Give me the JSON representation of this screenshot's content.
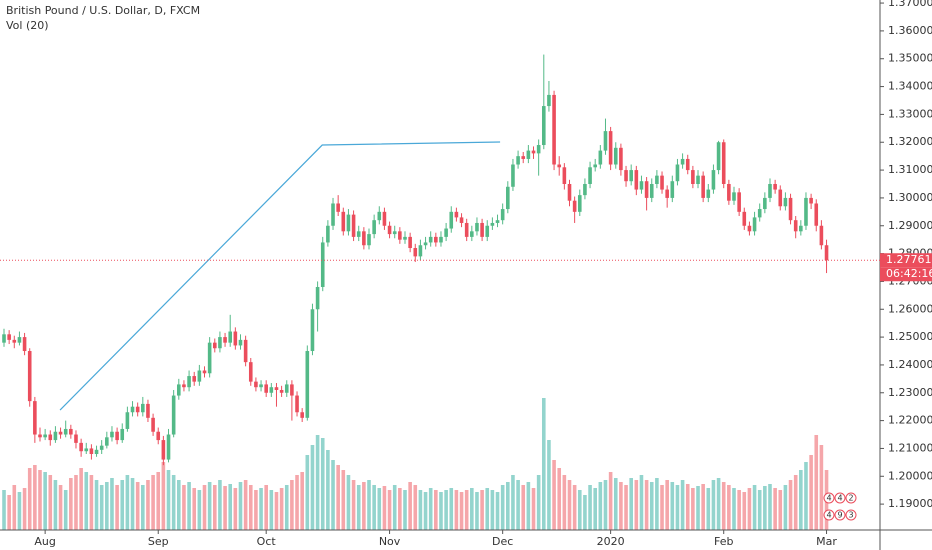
{
  "chart_data": {
    "type": "candlestick",
    "title": "British Pound / U.S. Dollar, D, FXCM",
    "volume_label": "Vol (20)",
    "up_color": "#53b987",
    "down_color": "#eb4d5c",
    "volume_up_color": "#93d4cd",
    "volume_down_color": "#f5a6aa",
    "drawing_color": "#4aa8d8",
    "grid": false,
    "ylim": [
      1.1807,
      1.3711
    ],
    "yticks": [
      {
        "value": 1.19,
        "label": "1.19000"
      },
      {
        "value": 1.2,
        "label": "1.20000"
      },
      {
        "value": 1.21,
        "label": "1.21000"
      },
      {
        "value": 1.22,
        "label": "1.22000"
      },
      {
        "value": 1.23,
        "label": "1.23000"
      },
      {
        "value": 1.24,
        "label": "1.24000"
      },
      {
        "value": 1.25,
        "label": "1.25000"
      },
      {
        "value": 1.26,
        "label": "1.26000"
      },
      {
        "value": 1.27,
        "label": "1.27000"
      },
      {
        "value": 1.28,
        "label": "1.28000"
      },
      {
        "value": 1.29,
        "label": "1.29000"
      },
      {
        "value": 1.3,
        "label": "1.30000"
      },
      {
        "value": 1.31,
        "label": "1.31000"
      },
      {
        "value": 1.32,
        "label": "1.32000"
      },
      {
        "value": 1.33,
        "label": "1.33000"
      },
      {
        "value": 1.34,
        "label": "1.34000"
      },
      {
        "value": 1.35,
        "label": "1.35000"
      },
      {
        "value": 1.36,
        "label": "1.36000"
      },
      {
        "value": 1.37,
        "label": "1.37000"
      }
    ],
    "xlim": [
      -0.78,
      170.4
    ],
    "xticks": [
      {
        "value": 8,
        "label": "Aug"
      },
      {
        "value": 30,
        "label": "Sep"
      },
      {
        "value": 51,
        "label": "Oct"
      },
      {
        "value": 75,
        "label": "Nov"
      },
      {
        "value": 97,
        "label": "Dec"
      },
      {
        "value": 118,
        "label": "2020"
      },
      {
        "value": 140,
        "label": "Feb"
      },
      {
        "value": 160,
        "label": "Mar"
      }
    ],
    "volume_lim": [
      0,
      140
    ],
    "countdown": "06:42:16",
    "event_markers": [
      [
        "4",
        "4",
        "2"
      ],
      [
        "4",
        "9",
        "3"
      ]
    ],
    "drawing": [
      [
        10.9,
        1.2238
      ],
      [
        61.9,
        1.319
      ],
      [
        96.5,
        1.3201
      ]
    ],
    "candles": [
      [
        1.248,
        1.253,
        1.2465,
        1.251
      ],
      [
        1.251,
        1.2525,
        1.2475,
        1.249
      ],
      [
        1.249,
        1.2505,
        1.246,
        1.248
      ],
      [
        1.248,
        1.252,
        1.247,
        1.25
      ],
      [
        1.25,
        1.2515,
        1.2435,
        1.245
      ],
      [
        1.245,
        1.246,
        1.225,
        1.227
      ],
      [
        1.227,
        1.2285,
        1.212,
        1.215
      ],
      [
        1.215,
        1.2175,
        1.2125,
        1.214
      ],
      [
        1.214,
        1.217,
        1.213,
        1.215
      ],
      [
        1.215,
        1.2165,
        1.211,
        1.213
      ],
      [
        1.213,
        1.218,
        1.212,
        1.216
      ],
      [
        1.216,
        1.2175,
        1.2135,
        1.215
      ],
      [
        1.215,
        1.22,
        1.214,
        1.217
      ],
      [
        1.217,
        1.2185,
        1.2135,
        1.215
      ],
      [
        1.215,
        1.2165,
        1.21,
        1.212
      ],
      [
        1.212,
        1.2135,
        1.207,
        1.209
      ],
      [
        1.209,
        1.212,
        1.208,
        1.21
      ],
      [
        1.21,
        1.2115,
        1.206,
        1.208
      ],
      [
        1.208,
        1.211,
        1.207,
        1.2095
      ],
      [
        1.2095,
        1.213,
        1.208,
        1.211
      ],
      [
        1.211,
        1.216,
        1.21,
        1.214
      ],
      [
        1.214,
        1.218,
        1.2125,
        1.216
      ],
      [
        1.216,
        1.2175,
        1.2115,
        1.213
      ],
      [
        1.213,
        1.219,
        1.212,
        1.217
      ],
      [
        1.217,
        1.225,
        1.216,
        1.223
      ],
      [
        1.223,
        1.227,
        1.2215,
        1.225
      ],
      [
        1.225,
        1.2265,
        1.2215,
        1.223
      ],
      [
        1.223,
        1.2285,
        1.2215,
        1.226
      ],
      [
        1.226,
        1.2275,
        1.2195,
        1.221
      ],
      [
        1.221,
        1.2225,
        1.2145,
        1.216
      ],
      [
        1.216,
        1.2175,
        1.2115,
        1.213
      ],
      [
        1.213,
        1.2145,
        1.204,
        1.206
      ],
      [
        1.206,
        1.217,
        1.205,
        1.215
      ],
      [
        1.215,
        1.231,
        1.214,
        1.229
      ],
      [
        1.229,
        1.235,
        1.2275,
        1.233
      ],
      [
        1.233,
        1.2345,
        1.2305,
        1.232
      ],
      [
        1.232,
        1.238,
        1.2305,
        1.236
      ],
      [
        1.236,
        1.2375,
        1.2325,
        1.234
      ],
      [
        1.234,
        1.24,
        1.2325,
        1.238
      ],
      [
        1.238,
        1.2395,
        1.2355,
        1.237
      ],
      [
        1.237,
        1.25,
        1.2355,
        1.248
      ],
      [
        1.248,
        1.2495,
        1.2445,
        1.246
      ],
      [
        1.246,
        1.252,
        1.2445,
        1.25
      ],
      [
        1.25,
        1.2515,
        1.2465,
        1.248
      ],
      [
        1.248,
        1.258,
        1.2465,
        1.252
      ],
      [
        1.252,
        1.2535,
        1.2455,
        1.247
      ],
      [
        1.247,
        1.251,
        1.2455,
        1.249
      ],
      [
        1.249,
        1.2505,
        1.2395,
        1.241
      ],
      [
        1.241,
        1.2425,
        1.2325,
        1.234
      ],
      [
        1.234,
        1.2355,
        1.2305,
        1.232
      ],
      [
        1.232,
        1.2345,
        1.2305,
        1.233
      ],
      [
        1.233,
        1.2345,
        1.2285,
        1.23
      ],
      [
        1.23,
        1.2335,
        1.2285,
        1.232
      ],
      [
        1.232,
        1.2335,
        1.225,
        1.231
      ],
      [
        1.231,
        1.2325,
        1.2285,
        1.23
      ],
      [
        1.23,
        1.2345,
        1.2285,
        1.233
      ],
      [
        1.233,
        1.2345,
        1.22,
        1.229
      ],
      [
        1.229,
        1.2305,
        1.2215,
        1.223
      ],
      [
        1.223,
        1.2245,
        1.2195,
        1.221
      ],
      [
        1.221,
        1.247,
        1.22,
        1.245
      ],
      [
        1.245,
        1.262,
        1.2435,
        1.26
      ],
      [
        1.26,
        1.27,
        1.252,
        1.268
      ],
      [
        1.268,
        1.286,
        1.2665,
        1.284
      ],
      [
        1.284,
        1.292,
        1.2825,
        1.29
      ],
      [
        1.29,
        1.3,
        1.2885,
        1.298
      ],
      [
        1.298,
        1.301,
        1.2935,
        1.295
      ],
      [
        1.295,
        1.2965,
        1.2865,
        1.288
      ],
      [
        1.288,
        1.296,
        1.2865,
        1.294
      ],
      [
        1.294,
        1.2955,
        1.2845,
        1.286
      ],
      [
        1.286,
        1.29,
        1.2845,
        1.288
      ],
      [
        1.288,
        1.2895,
        1.2815,
        1.283
      ],
      [
        1.283,
        1.289,
        1.2815,
        1.287
      ],
      [
        1.287,
        1.294,
        1.2855,
        1.292
      ],
      [
        1.292,
        1.297,
        1.2905,
        1.295
      ],
      [
        1.295,
        1.2965,
        1.2885,
        1.29
      ],
      [
        1.29,
        1.2915,
        1.2855,
        1.287
      ],
      [
        1.287,
        1.29,
        1.2855,
        1.288
      ],
      [
        1.288,
        1.2895,
        1.2835,
        1.285
      ],
      [
        1.285,
        1.288,
        1.2835,
        1.286
      ],
      [
        1.286,
        1.2875,
        1.2805,
        1.282
      ],
      [
        1.282,
        1.2835,
        1.277,
        1.279
      ],
      [
        1.279,
        1.285,
        1.2775,
        1.283
      ],
      [
        1.283,
        1.286,
        1.2815,
        1.284
      ],
      [
        1.284,
        1.288,
        1.2825,
        1.286
      ],
      [
        1.286,
        1.2875,
        1.2825,
        1.284
      ],
      [
        1.284,
        1.288,
        1.2825,
        1.286
      ],
      [
        1.286,
        1.291,
        1.2845,
        1.289
      ],
      [
        1.289,
        1.297,
        1.2875,
        1.295
      ],
      [
        1.295,
        1.2965,
        1.2915,
        1.293
      ],
      [
        1.293,
        1.2945,
        1.2895,
        1.291
      ],
      [
        1.291,
        1.2925,
        1.2845,
        1.286
      ],
      [
        1.286,
        1.29,
        1.2845,
        1.288
      ],
      [
        1.288,
        1.293,
        1.2865,
        1.291
      ],
      [
        1.291,
        1.2925,
        1.2845,
        1.286
      ],
      [
        1.286,
        1.292,
        1.2845,
        1.29
      ],
      [
        1.29,
        1.293,
        1.2885,
        1.291
      ],
      [
        1.291,
        1.294,
        1.2895,
        1.292
      ],
      [
        1.292,
        1.298,
        1.2905,
        1.296
      ],
      [
        1.296,
        1.306,
        1.2945,
        1.304
      ],
      [
        1.304,
        1.314,
        1.3025,
        1.312
      ],
      [
        1.312,
        1.317,
        1.3105,
        1.315
      ],
      [
        1.315,
        1.3165,
        1.3125,
        1.314
      ],
      [
        1.314,
        1.319,
        1.3125,
        1.317
      ],
      [
        1.317,
        1.3185,
        1.314,
        1.316
      ],
      [
        1.316,
        1.321,
        1.308,
        1.319
      ],
      [
        1.319,
        1.3515,
        1.3175,
        1.333
      ],
      [
        1.333,
        1.342,
        1.331,
        1.337
      ],
      [
        1.337,
        1.3385,
        1.31,
        1.312
      ],
      [
        1.312,
        1.315,
        1.308,
        1.311
      ],
      [
        1.311,
        1.3125,
        1.303,
        1.305
      ],
      [
        1.305,
        1.3065,
        1.297,
        1.299
      ],
      [
        1.299,
        1.3005,
        1.291,
        1.295
      ],
      [
        1.295,
        1.303,
        1.2935,
        1.301
      ],
      [
        1.301,
        1.307,
        1.2995,
        1.305
      ],
      [
        1.305,
        1.313,
        1.3035,
        1.311
      ],
      [
        1.311,
        1.314,
        1.3095,
        1.312
      ],
      [
        1.312,
        1.319,
        1.3105,
        1.317
      ],
      [
        1.317,
        1.3285,
        1.3155,
        1.324
      ],
      [
        1.324,
        1.3255,
        1.31,
        1.312
      ],
      [
        1.312,
        1.32,
        1.3105,
        1.318
      ],
      [
        1.318,
        1.3195,
        1.308,
        1.31
      ],
      [
        1.31,
        1.3115,
        1.304,
        1.306
      ],
      [
        1.306,
        1.312,
        1.3045,
        1.31
      ],
      [
        1.31,
        1.3115,
        1.301,
        1.303
      ],
      [
        1.303,
        1.308,
        1.3015,
        1.306
      ],
      [
        1.306,
        1.3075,
        1.2955,
        1.3
      ],
      [
        1.3,
        1.307,
        1.2985,
        1.305
      ],
      [
        1.305,
        1.31,
        1.3035,
        1.308
      ],
      [
        1.308,
        1.3095,
        1.3015,
        1.303
      ],
      [
        1.303,
        1.3045,
        1.2965,
        1.3
      ],
      [
        1.3,
        1.308,
        1.2985,
        1.306
      ],
      [
        1.306,
        1.314,
        1.3045,
        1.312
      ],
      [
        1.312,
        1.316,
        1.3105,
        1.314
      ],
      [
        1.314,
        1.3155,
        1.3085,
        1.31
      ],
      [
        1.31,
        1.3115,
        1.3035,
        1.305
      ],
      [
        1.305,
        1.31,
        1.3035,
        1.308
      ],
      [
        1.308,
        1.3095,
        1.2985,
        1.3
      ],
      [
        1.3,
        1.305,
        1.2985,
        1.303
      ],
      [
        1.303,
        1.312,
        1.3015,
        1.31
      ],
      [
        1.31,
        1.3205,
        1.3085,
        1.32
      ],
      [
        1.32,
        1.321,
        1.3035,
        1.305
      ],
      [
        1.305,
        1.3065,
        1.2975,
        1.299
      ],
      [
        1.299,
        1.304,
        1.2975,
        1.302
      ],
      [
        1.302,
        1.3035,
        1.2935,
        1.295
      ],
      [
        1.295,
        1.2965,
        1.2885,
        1.29
      ],
      [
        1.29,
        1.2915,
        1.2865,
        1.288
      ],
      [
        1.288,
        1.295,
        1.2865,
        1.293
      ],
      [
        1.293,
        1.298,
        1.2915,
        1.296
      ],
      [
        1.296,
        1.302,
        1.2945,
        1.3
      ],
      [
        1.3,
        1.307,
        1.2985,
        1.305
      ],
      [
        1.305,
        1.3065,
        1.3015,
        1.303
      ],
      [
        1.303,
        1.3045,
        1.2955,
        1.297
      ],
      [
        1.297,
        1.302,
        1.2955,
        1.3
      ],
      [
        1.3,
        1.3015,
        1.2905,
        1.292
      ],
      [
        1.292,
        1.2935,
        1.2855,
        1.288
      ],
      [
        1.288,
        1.292,
        1.2865,
        1.29
      ],
      [
        1.29,
        1.302,
        1.2885,
        1.3
      ],
      [
        1.3,
        1.3015,
        1.296,
        1.298
      ],
      [
        1.298,
        1.2995,
        1.288,
        1.29
      ],
      [
        1.29,
        1.292,
        1.2815,
        1.283
      ],
      [
        1.283,
        1.285,
        1.273,
        1.27761
      ]
    ],
    "volumes": [
      40,
      35,
      45,
      38,
      42,
      62,
      65,
      60,
      58,
      55,
      50,
      45,
      40,
      52,
      55,
      62,
      58,
      55,
      50,
      45,
      48,
      52,
      45,
      50,
      55,
      52,
      48,
      45,
      50,
      55,
      58,
      68,
      60,
      55,
      50,
      45,
      48,
      42,
      40,
      45,
      48,
      45,
      50,
      44,
      46,
      42,
      48,
      50,
      45,
      40,
      42,
      45,
      40,
      38,
      42,
      45,
      50,
      55,
      58,
      75,
      85,
      95,
      92,
      80,
      70,
      65,
      60,
      55,
      50,
      45,
      48,
      50,
      45,
      42,
      44,
      40,
      45,
      42,
      40,
      48,
      45,
      40,
      38,
      42,
      40,
      38,
      40,
      42,
      40,
      38,
      40,
      42,
      38,
      40,
      42,
      40,
      38,
      45,
      48,
      55,
      50,
      45,
      48,
      42,
      55,
      132,
      90,
      70,
      62,
      55,
      50,
      45,
      40,
      35,
      45,
      42,
      48,
      50,
      58,
      52,
      48,
      45,
      52,
      50,
      55,
      50,
      48,
      52,
      45,
      50,
      48,
      45,
      50,
      46,
      42,
      44,
      46,
      42,
      50,
      52,
      48,
      45,
      42,
      40,
      38,
      42,
      45,
      40,
      44,
      46,
      42,
      40,
      45,
      50,
      55,
      60,
      68,
      75,
      95,
      85,
      60
    ]
  }
}
